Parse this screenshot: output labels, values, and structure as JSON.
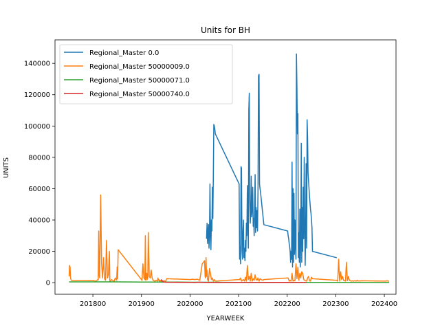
{
  "chart_data": {
    "type": "line",
    "title": "Units for BH",
    "xlabel": "YEARWEEK",
    "ylabel": "UNITS",
    "xlim": [
      201722,
      202424
    ],
    "ylim": [
      -7400,
      155000
    ],
    "xticks": [
      201800,
      201900,
      202000,
      202100,
      202200,
      202300,
      202400
    ],
    "yticks": [
      0,
      20000,
      40000,
      60000,
      80000,
      100000,
      120000,
      140000
    ],
    "legend_position": "upper left",
    "grid": false,
    "series": [
      {
        "name": "Regional_Master 0.0",
        "color": "#1f77b4",
        "x": [
          202034,
          202035,
          202036,
          202037,
          202038,
          202039,
          202040,
          202041,
          202042,
          202043,
          202044,
          202045,
          202046,
          202047,
          202048,
          202049,
          202050,
          202051,
          202052,
          202101,
          202102,
          202103,
          202104,
          202105,
          202106,
          202107,
          202108,
          202109,
          202110,
          202111,
          202112,
          202113,
          202114,
          202115,
          202116,
          202117,
          202118,
          202119,
          202120,
          202121,
          202122,
          202123,
          202124,
          202125,
          202126,
          202127,
          202128,
          202129,
          202130,
          202131,
          202132,
          202133,
          202134,
          202135,
          202136,
          202137,
          202138,
          202139,
          202140,
          202141,
          202142,
          202143,
          202144,
          202145,
          202146,
          202147,
          202148,
          202149,
          202150,
          202151,
          202152,
          202201,
          202202,
          202203,
          202204,
          202205,
          202206,
          202207,
          202208,
          202209,
          202210,
          202211,
          202212,
          202213,
          202214,
          202215,
          202216,
          202217,
          202218,
          202219,
          202220,
          202221,
          202222,
          202223,
          202224,
          202225,
          202226,
          202227,
          202228,
          202229,
          202230,
          202231,
          202232,
          202233,
          202234,
          202235,
          202236,
          202237,
          202238,
          202239,
          202240,
          202241,
          202242,
          202243,
          202244,
          202245,
          202246,
          202247,
          202248,
          202249,
          202250,
          202251,
          202252,
          202301,
          202302
        ],
        "values": [
          28000,
          38000,
          25000,
          33000,
          37000,
          22000,
          30000,
          63000,
          30000,
          21000,
          40000,
          33000,
          61000,
          41000,
          68000,
          101000,
          100000,
          98000,
          95000,
          63000,
          15000,
          23000,
          12000,
          74000,
          73000,
          20000,
          15000,
          33000,
          40000,
          16000,
          22000,
          14000,
          27000,
          20000,
          38000,
          30000,
          62000,
          40000,
          22000,
          110000,
          121000,
          52000,
          38000,
          45000,
          68000,
          42000,
          49000,
          61000,
          36000,
          41000,
          30000,
          50000,
          69000,
          32000,
          48000,
          35000,
          46000,
          33000,
          60000,
          132000,
          133000,
          63000,
          60000,
          58000,
          55000,
          52000,
          49000,
          46000,
          43000,
          40000,
          37000,
          33000,
          30000,
          28000,
          25000,
          23000,
          20000,
          13000,
          20000,
          15000,
          77000,
          10000,
          60000,
          13000,
          57000,
          18000,
          40000,
          24000,
          15000,
          146000,
          125000,
          95000,
          108000,
          16000,
          32000,
          13000,
          47000,
          10000,
          30000,
          89000,
          13000,
          48000,
          20000,
          61000,
          28000,
          80000,
          38000,
          11000,
          33000,
          76000,
          22000,
          104000,
          93000,
          70000,
          65000,
          60000,
          55000,
          51000,
          47000,
          44000,
          40000,
          35000,
          20000,
          16000,
          16000
        ]
      },
      {
        "name": "Regional_Master 50000009.0",
        "color": "#ff7f0e",
        "x": [
          201751,
          201752,
          201753,
          201754,
          201755,
          201756,
          201801,
          201803,
          201805,
          201807,
          201808,
          201810,
          201811,
          201812,
          201813,
          201814,
          201816,
          201818,
          201820,
          201822,
          201824,
          201826,
          201828,
          201830,
          201832,
          201834,
          201835,
          201836,
          201838,
          201840,
          201842,
          201844,
          201846,
          201848,
          201849,
          201850,
          201851,
          201852,
          201901,
          201903,
          201905,
          201907,
          201908,
          201909,
          201910,
          201911,
          201912,
          201913,
          201914,
          201916,
          201918,
          201920,
          201922,
          201924,
          201926,
          201928,
          201930,
          201932,
          201933,
          201934,
          201935,
          201936,
          201937,
          201938,
          201939,
          201940,
          201941,
          201942,
          201944,
          201946,
          201948,
          201950,
          201952,
          202001,
          202005,
          202010,
          202015,
          202020,
          202025,
          202030,
          202031,
          202032,
          202033,
          202034,
          202035,
          202036,
          202038,
          202040,
          202042,
          202044,
          202046,
          202048,
          202050,
          202052,
          202102,
          202104,
          202106,
          202108,
          202110,
          202112,
          202114,
          202116,
          202118,
          202120,
          202122,
          202124,
          202126,
          202128,
          202130,
          202132,
          202134,
          202136,
          202138,
          202140,
          202142,
          202144,
          202146,
          202148,
          202150,
          202152,
          202202,
          202204,
          202206,
          202208,
          202210,
          202212,
          202214,
          202216,
          202218,
          202220,
          202222,
          202224,
          202226,
          202228,
          202230,
          202232,
          202234,
          202236,
          202238,
          202240,
          202242,
          202244,
          202246,
          202248,
          202250,
          202252,
          202302,
          202304,
          202306,
          202308,
          202310,
          202312,
          202314,
          202316,
          202318,
          202320,
          202322,
          202324,
          202326,
          202328,
          202330,
          202332,
          202334,
          202336,
          202338,
          202340,
          202342,
          202344,
          202346,
          202348,
          202350,
          202352,
          202402,
          202404,
          202406,
          202408,
          202410
        ],
        "values": [
          4000,
          11000,
          10000,
          3000,
          2000,
          1500,
          1400,
          1200,
          1000,
          1200,
          1400,
          2000,
          1800,
          33000,
          5000,
          3000,
          56000,
          12000,
          3000,
          16000,
          2500,
          1500,
          27000,
          3000,
          5000,
          20000,
          1000,
          800,
          2000,
          1500,
          1200,
          1000,
          3000,
          2000,
          1500,
          10000,
          2500,
          21000,
          1500,
          12000,
          3000,
          2000,
          30000,
          1500,
          4000,
          6000,
          2000,
          3500,
          32000,
          4000,
          3000,
          8000,
          3000,
          1500,
          1200,
          1000,
          1500,
          1200,
          1000,
          3000,
          1500,
          2000,
          1000,
          1500,
          1000,
          1200,
          1000,
          900,
          1000,
          1200,
          1100,
          1000,
          2500,
          2000,
          2200,
          2000,
          2200,
          1500,
          12000,
          14000,
          4000,
          3000,
          16000,
          4000,
          8000,
          2000,
          1000,
          9000,
          6000,
          2000,
          3000,
          1000,
          2000,
          1000,
          2000,
          3000,
          1000,
          1500,
          2000,
          1000,
          3500,
          1000,
          11000,
          2000,
          4000,
          1000,
          6000,
          1000,
          2500,
          1500,
          5000,
          2000,
          1500,
          3000,
          1000,
          2500,
          2000,
          1800,
          1500,
          2000,
          3000,
          1000,
          1500,
          1000,
          6000,
          1000,
          1500,
          1200,
          12000,
          2500,
          10000,
          1500,
          6000,
          3000,
          7000,
          6000,
          2000,
          1500,
          1200,
          1000,
          3000,
          4000,
          1200,
          1000,
          3500,
          2500,
          1500,
          1000,
          15000,
          1000,
          7000,
          2000,
          4000,
          1500,
          1200,
          1000,
          13000,
          1200,
          4000,
          1500,
          1200,
          1000,
          1200,
          1000,
          1100,
          1200,
          1000,
          1500,
          1000,
          1200,
          1000,
          1200,
          1000,
          1100,
          1200,
          1000,
          1000
        ]
      },
      {
        "name": "Regional_Master 50000071.0",
        "color": "#2ca02c",
        "x": [
          201751,
          201800,
          201850,
          201900,
          201950,
          202000,
          202050,
          202100,
          202150,
          202200,
          202250,
          202300,
          202350,
          202410
        ],
        "values": [
          500,
          500,
          500,
          400,
          400,
          300,
          300,
          200,
          200,
          200,
          200,
          200,
          100,
          100
        ]
      },
      {
        "name": "Regional_Master 50000740.0",
        "color": "#d62728",
        "x": [
          201940,
          201945,
          201950,
          202000,
          202010,
          202020,
          202030,
          202040,
          202050,
          202100,
          202150,
          202200,
          202210,
          202220,
          202240
        ],
        "values": [
          2000,
          500,
          300,
          200,
          100,
          300,
          100,
          200,
          100,
          100,
          100,
          200,
          100,
          100,
          100
        ]
      }
    ]
  }
}
